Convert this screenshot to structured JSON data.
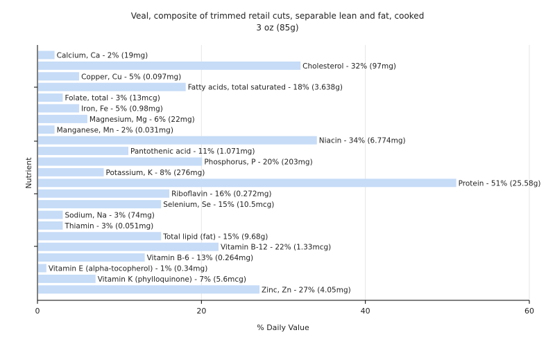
{
  "chart_data": {
    "type": "bar",
    "orientation": "horizontal",
    "title": "Veal, composite of trimmed retail cuts, separable lean and fat, cooked",
    "subtitle": "3 oz (85g)",
    "xlabel": "% Daily Value",
    "ylabel": "Nutrient",
    "xlim": [
      0,
      60
    ],
    "xticks": [
      0,
      20,
      40,
      60
    ],
    "grid": true,
    "legend": "none",
    "bar_color": "#c6dcf7",
    "categories": [
      "Calcium, Ca",
      "Cholesterol",
      "Copper, Cu",
      "Fatty acids, total saturated",
      "Folate, total",
      "Iron, Fe",
      "Magnesium, Mg",
      "Manganese, Mn",
      "Niacin",
      "Pantothenic acid",
      "Phosphorus, P",
      "Potassium, K",
      "Protein",
      "Riboflavin",
      "Selenium, Se",
      "Sodium, Na",
      "Thiamin",
      "Total lipid (fat)",
      "Vitamin B-12",
      "Vitamin B-6",
      "Vitamin E (alpha-tocopherol)",
      "Vitamin K (phylloquinone)",
      "Zinc, Zn"
    ],
    "values": [
      2,
      32,
      5,
      18,
      3,
      5,
      6,
      2,
      34,
      11,
      20,
      8,
      51,
      16,
      15,
      3,
      3,
      15,
      22,
      13,
      1,
      7,
      27
    ],
    "labels": [
      "Calcium, Ca - 2% (19mg)",
      "Cholesterol - 32% (97mg)",
      "Copper, Cu - 5% (0.097mg)",
      "Fatty acids, total saturated - 18% (3.638g)",
      "Folate, total - 3% (13mcg)",
      "Iron, Fe - 5% (0.98mg)",
      "Magnesium, Mg - 6% (22mg)",
      "Manganese, Mn - 2% (0.031mg)",
      "Niacin - 34% (6.774mg)",
      "Pantothenic acid - 11% (1.071mg)",
      "Phosphorus, P - 20% (203mg)",
      "Potassium, K - 8% (276mg)",
      "Protein - 51% (25.58g)",
      "Riboflavin - 16% (0.272mg)",
      "Selenium, Se - 15% (10.5mcg)",
      "Sodium, Na - 3% (74mg)",
      "Thiamin - 3% (0.051mg)",
      "Total lipid (fat) - 15% (9.68g)",
      "Vitamin B-12 - 22% (1.33mcg)",
      "Vitamin B-6 - 13% (0.264mg)",
      "Vitamin E (alpha-tocopherol) - 1% (0.34mg)",
      "Vitamin K (phylloquinone) - 7% (5.6mcg)",
      "Zinc, Zn - 27% (4.05mg)"
    ]
  }
}
